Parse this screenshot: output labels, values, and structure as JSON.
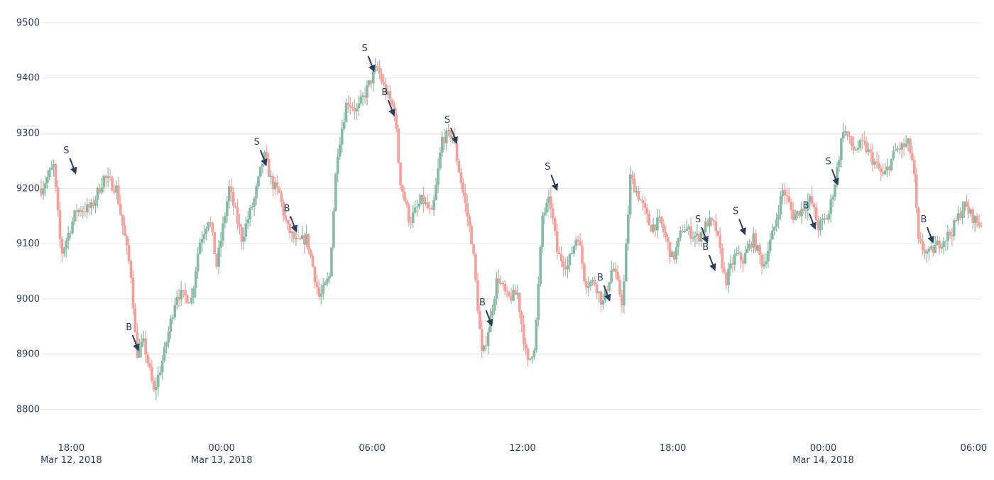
{
  "chart_data": {
    "type": "candlestick",
    "title": "",
    "xlabel": "",
    "ylabel": "",
    "ylim": [
      8775,
      9505
    ],
    "xlim_hours": [
      0,
      37.5
    ],
    "grid": true,
    "y_ticks": [
      8800,
      8900,
      9000,
      9100,
      9200,
      9300,
      9400,
      9500
    ],
    "x_ticks": [
      {
        "line1": "18:00",
        "line2": "Mar 12, 2018",
        "t": 1.2
      },
      {
        "line1": "00:00",
        "line2": "Mar 13, 2018",
        "t": 7.2
      },
      {
        "line1": "06:00",
        "line2": "",
        "t": 13.2
      },
      {
        "line1": "12:00",
        "line2": "",
        "t": 19.2
      },
      {
        "line1": "18:00",
        "line2": "",
        "t": 25.2
      },
      {
        "line1": "00:00",
        "line2": "Mar 14, 2018",
        "t": 31.2
      },
      {
        "line1": "06:00",
        "line2": "",
        "t": 37.2
      }
    ],
    "colors": {
      "increasing": "#85bba2",
      "decreasing": "#f4a09a",
      "arrow": "#2a3f5f",
      "grid": "#e6e6e6",
      "axis_text": "#2a3f5f"
    },
    "close_path": [
      [
        0,
        9200
      ],
      [
        0.5,
        9240
      ],
      [
        0.8,
        9080
      ],
      [
        1.4,
        9160
      ],
      [
        2.0,
        9165
      ],
      [
        2.5,
        9220
      ],
      [
        3.0,
        9200
      ],
      [
        3.3,
        9120
      ],
      [
        3.6,
        9040
      ],
      [
        3.8,
        8900
      ],
      [
        4.1,
        8920
      ],
      [
        4.5,
        8830
      ],
      [
        4.9,
        8900
      ],
      [
        5.4,
        9010
      ],
      [
        6.0,
        9000
      ],
      [
        6.3,
        9100
      ],
      [
        6.7,
        9150
      ],
      [
        7.0,
        9060
      ],
      [
        7.5,
        9200
      ],
      [
        8.0,
        9110
      ],
      [
        8.5,
        9180
      ],
      [
        8.9,
        9260
      ],
      [
        9.2,
        9210
      ],
      [
        9.5,
        9190
      ],
      [
        9.8,
        9130
      ],
      [
        10.2,
        9100
      ],
      [
        10.6,
        9110
      ],
      [
        11.1,
        9000
      ],
      [
        11.5,
        9040
      ],
      [
        11.8,
        9260
      ],
      [
        12.2,
        9360
      ],
      [
        12.6,
        9340
      ],
      [
        13.1,
        9390
      ],
      [
        13.4,
        9420
      ],
      [
        13.7,
        9380
      ],
      [
        14.1,
        9340
      ],
      [
        14.3,
        9220
      ],
      [
        14.7,
        9140
      ],
      [
        15.2,
        9180
      ],
      [
        15.6,
        9150
      ],
      [
        16.0,
        9290
      ],
      [
        16.4,
        9300
      ],
      [
        16.8,
        9200
      ],
      [
        17.2,
        9100
      ],
      [
        17.6,
        8890
      ],
      [
        17.9,
        8960
      ],
      [
        18.2,
        9040
      ],
      [
        18.6,
        9000
      ],
      [
        19.0,
        9010
      ],
      [
        19.4,
        8880
      ],
      [
        19.7,
        8920
      ],
      [
        20.0,
        9150
      ],
      [
        20.3,
        9180
      ],
      [
        20.6,
        9080
      ],
      [
        21.0,
        9060
      ],
      [
        21.4,
        9120
      ],
      [
        21.7,
        9030
      ],
      [
        22.1,
        9030
      ],
      [
        22.4,
        8990
      ],
      [
        22.8,
        9060
      ],
      [
        23.2,
        8990
      ],
      [
        23.5,
        9220
      ],
      [
        23.9,
        9180
      ],
      [
        24.3,
        9130
      ],
      [
        24.7,
        9140
      ],
      [
        25.2,
        9070
      ],
      [
        25.6,
        9130
      ],
      [
        26.2,
        9110
      ],
      [
        26.6,
        9140
      ],
      [
        26.9,
        9130
      ],
      [
        27.3,
        9030
      ],
      [
        27.7,
        9080
      ],
      [
        28.0,
        9070
      ],
      [
        28.4,
        9110
      ],
      [
        28.8,
        9060
      ],
      [
        29.2,
        9120
      ],
      [
        29.6,
        9200
      ],
      [
        30.0,
        9150
      ],
      [
        30.3,
        9160
      ],
      [
        30.7,
        9180
      ],
      [
        31.0,
        9130
      ],
      [
        31.4,
        9150
      ],
      [
        31.7,
        9220
      ],
      [
        32.0,
        9310
      ],
      [
        32.4,
        9270
      ],
      [
        32.8,
        9280
      ],
      [
        33.2,
        9250
      ],
      [
        33.6,
        9220
      ],
      [
        34.1,
        9270
      ],
      [
        34.6,
        9280
      ],
      [
        34.8,
        9240
      ],
      [
        35.0,
        9100
      ],
      [
        35.4,
        9080
      ],
      [
        35.8,
        9100
      ],
      [
        36.3,
        9120
      ],
      [
        36.8,
        9170
      ],
      [
        37.3,
        9140
      ],
      [
        37.5,
        9135
      ]
    ],
    "annotations": [
      {
        "text": "S",
        "t": 1.4,
        "price": 9225
      },
      {
        "text": "B",
        "t": 3.9,
        "price": 8905
      },
      {
        "text": "S",
        "t": 9.0,
        "price": 9240
      },
      {
        "text": "B",
        "t": 10.2,
        "price": 9120
      },
      {
        "text": "S",
        "t": 13.3,
        "price": 9410
      },
      {
        "text": "B",
        "t": 14.1,
        "price": 9330
      },
      {
        "text": "S",
        "t": 16.6,
        "price": 9280
      },
      {
        "text": "B",
        "t": 18.0,
        "price": 8950
      },
      {
        "text": "S",
        "t": 20.6,
        "price": 9195
      },
      {
        "text": "B",
        "t": 22.7,
        "price": 8995
      },
      {
        "text": "S",
        "t": 26.6,
        "price": 9100
      },
      {
        "text": "B",
        "t": 26.9,
        "price": 9050
      },
      {
        "text": "S",
        "t": 28.1,
        "price": 9115
      },
      {
        "text": "B",
        "t": 30.9,
        "price": 9125
      },
      {
        "text": "S",
        "t": 31.8,
        "price": 9205
      },
      {
        "text": "B",
        "t": 35.6,
        "price": 9100
      }
    ]
  }
}
